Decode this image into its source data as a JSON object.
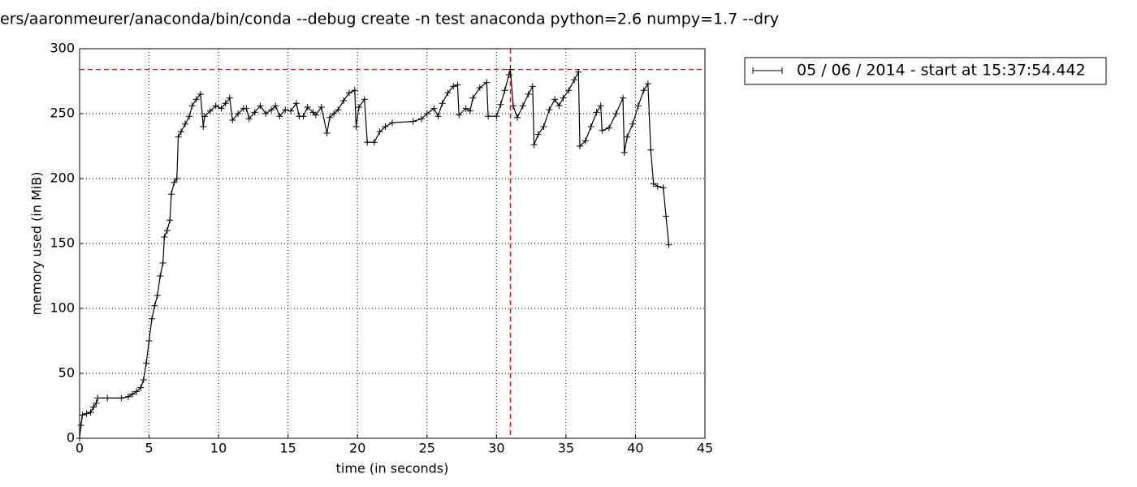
{
  "chart_data": {
    "type": "line",
    "title": "ers/aaronmeurer/anaconda/bin/conda --debug create -n test anaconda python=2.6 numpy=1.7 --dry",
    "x_label": "time (in seconds)",
    "y_label": "memory used (in MiB)",
    "xlim": [
      0,
      45
    ],
    "xticks": [
      0,
      5,
      10,
      15,
      20,
      25,
      30,
      35,
      40,
      45
    ],
    "ylim": [
      0,
      300
    ],
    "yticks": [
      0,
      50,
      100,
      150,
      200,
      250,
      300
    ],
    "grid": true,
    "legend": "right",
    "max_lines": {
      "x": 31.0,
      "y": 284,
      "color": "#ff0000"
    },
    "series": [
      {
        "name": "05 / 06 / 2014 - start at 15:37:54.442",
        "color": "#000000",
        "x": [
          0,
          0.1,
          0.2,
          0.5,
          0.8,
          1.0,
          1.2,
          1.3,
          2,
          3,
          3.5,
          3.8,
          4.1,
          4.4,
          4.6,
          4.8,
          5.0,
          5.2,
          5.4,
          5.6,
          5.8,
          6.0,
          6.1,
          6.3,
          6.5,
          6.6,
          6.8,
          7.0,
          7.1,
          7.3,
          7.6,
          7.9,
          8.1,
          8.4,
          8.7,
          8.9,
          9.0,
          9.4,
          9.8,
          10.2,
          10.5,
          10.8,
          11.0,
          11.4,
          11.8,
          12.0,
          12.2,
          12.6,
          13.0,
          13.4,
          13.8,
          14.1,
          14.4,
          14.8,
          15.2,
          15.6,
          15.8,
          16.1,
          16.4,
          16.8,
          17.0,
          17.4,
          17.8,
          18.0,
          18.3,
          18.6,
          19.0,
          19.4,
          19.8,
          19.9,
          20.1,
          20.5,
          20.7,
          21.2,
          21.6,
          22.0,
          22.5,
          24.0,
          24.6,
          25.0,
          25.5,
          25.8,
          26.1,
          26.5,
          26.9,
          27.2,
          27.3,
          27.8,
          28.1,
          28.3,
          28.8,
          29.3,
          29.4,
          30.0,
          30.3,
          30.6,
          30.9,
          31.0,
          31.2,
          31.5,
          31.9,
          32.3,
          32.6,
          32.7,
          33.0,
          33.4,
          33.8,
          34.2,
          34.5,
          34.8,
          35.2,
          35.6,
          35.9,
          36.0,
          36.4,
          36.8,
          37.2,
          37.5,
          37.6,
          38.1,
          38.6,
          39.1,
          39.2,
          39.4,
          39.8,
          40.2,
          40.6,
          40.9,
          41.1,
          41.3,
          41.6,
          42.0,
          42.2,
          42.4
        ],
        "values": [
          0,
          10,
          18,
          19,
          20,
          24,
          27,
          31,
          31,
          31,
          32,
          34,
          36,
          39,
          45,
          58,
          75,
          92,
          102,
          110,
          125,
          135,
          155,
          160,
          168,
          188,
          197,
          200,
          232,
          236,
          242,
          248,
          256,
          261,
          265,
          240,
          248,
          252,
          256,
          254,
          258,
          262,
          245,
          250,
          254,
          254,
          246,
          251,
          256,
          250,
          253,
          256,
          248,
          253,
          252,
          258,
          248,
          248,
          255,
          251,
          249,
          255,
          235,
          247,
          250,
          253,
          260,
          266,
          268,
          240,
          255,
          261,
          228,
          228,
          236,
          240,
          243,
          244,
          246,
          250,
          254,
          248,
          258,
          266,
          271,
          272,
          249,
          254,
          252,
          262,
          270,
          274,
          248,
          248,
          257,
          268,
          280,
          284,
          256,
          247,
          256,
          265,
          271,
          226,
          234,
          240,
          253,
          261,
          256,
          262,
          268,
          276,
          282,
          225,
          229,
          240,
          251,
          256,
          237,
          239,
          250,
          262,
          220,
          232,
          242,
          256,
          268,
          273,
          222,
          196,
          194,
          193,
          171,
          149
        ]
      }
    ]
  }
}
